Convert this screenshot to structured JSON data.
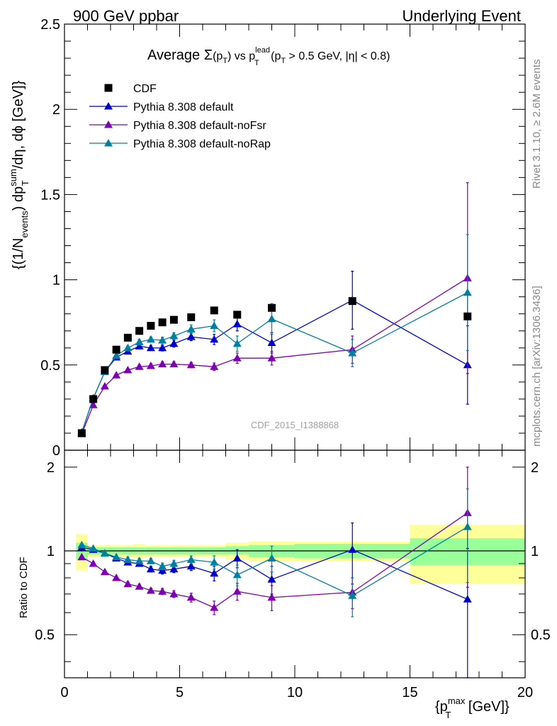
{
  "header": {
    "left": "900 GeV ppbar",
    "right": "Underlying Event"
  },
  "side_labels": {
    "rivet": "Rivet 3.1.10, ≥ 2.6M events",
    "mcplots": "mcplots.cern.ch [arXiv:1306.3436]"
  },
  "watermark": "CDF_2015_I1388868",
  "title": {
    "t1": "Average ",
    "sigma": "Σ",
    "t2": "(p",
    "sub_T": "T",
    "t3": ") vs p",
    "sup_lead": "lead",
    "t4": " (p",
    "t5": " > 0.5 GeV, |η| < 0.8)"
  },
  "ylabel_top": {
    "a": "{(1/N",
    "sub_events": "events",
    "b": ") dp",
    "sup_sum": "sum",
    "c": "/dη, dϕ [GeV]}"
  },
  "ylabel_bottom": "Ratio to CDF",
  "xlabel": {
    "a": "{p",
    "sup_max": "max",
    "b": " [GeV]}"
  },
  "colors": {
    "cdf": "#000000",
    "default": "#0000cc",
    "nofsr": "#7f00b2",
    "norap": "#0080a0",
    "band_inner": "#99ff99",
    "band_outer": "#ffff99"
  },
  "chart_data": [
    {
      "type": "scatter",
      "panel": "main",
      "xlim": [
        0,
        20
      ],
      "ylim": [
        0,
        2.5
      ],
      "yticks": [
        "0",
        "0.5",
        "1",
        "1.5",
        "2",
        "2.5"
      ],
      "xticks": [
        "0",
        "5",
        "10",
        "15",
        "20"
      ],
      "legend_position": "top-left",
      "series": [
        {
          "name": "CDF",
          "key": "cdf",
          "marker": "square",
          "x": [
            0.75,
            1.25,
            1.75,
            2.25,
            2.75,
            3.25,
            3.75,
            4.25,
            4.75,
            5.5,
            6.5,
            7.5,
            9.0,
            12.5,
            17.5
          ],
          "y": [
            0.1,
            0.3,
            0.47,
            0.59,
            0.66,
            0.7,
            0.73,
            0.75,
            0.765,
            0.78,
            0.82,
            0.795,
            0.835,
            0.875,
            0.785
          ],
          "err": [
            0,
            0,
            0,
            0,
            0,
            0,
            0,
            0,
            0,
            0,
            0,
            0,
            0,
            0,
            0
          ]
        },
        {
          "name": "Pythia 8.308 default",
          "key": "default",
          "marker": "triangle",
          "x": [
            0.75,
            1.25,
            1.75,
            2.25,
            2.75,
            3.25,
            3.75,
            4.25,
            4.75,
            5.5,
            6.5,
            7.5,
            9.0,
            12.5,
            17.5
          ],
          "y": [
            0.105,
            0.305,
            0.46,
            0.545,
            0.58,
            0.61,
            0.6,
            0.6,
            0.625,
            0.665,
            0.65,
            0.74,
            0.63,
            0.88,
            0.5
          ],
          "err": [
            0.005,
            0.008,
            0.01,
            0.012,
            0.012,
            0.015,
            0.015,
            0.018,
            0.02,
            0.022,
            0.03,
            0.04,
            0.06,
            0.17,
            0.23
          ]
        },
        {
          "name": "Pythia 8.308 default-noFsr",
          "key": "nofsr",
          "marker": "triangle",
          "x": [
            0.75,
            1.25,
            1.75,
            2.25,
            2.75,
            3.25,
            3.75,
            4.25,
            4.75,
            5.5,
            6.5,
            7.5,
            9.0,
            12.5,
            17.5
          ],
          "y": [
            0.095,
            0.265,
            0.375,
            0.44,
            0.47,
            0.49,
            0.495,
            0.505,
            0.505,
            0.5,
            0.49,
            0.54,
            0.54,
            0.59,
            1.01
          ],
          "err": [
            0.004,
            0.006,
            0.008,
            0.01,
            0.01,
            0.012,
            0.012,
            0.014,
            0.015,
            0.016,
            0.022,
            0.03,
            0.04,
            0.08,
            0.56
          ]
        },
        {
          "name": "Pythia 8.308 default-noRap",
          "key": "norap",
          "marker": "triangle",
          "x": [
            0.75,
            1.25,
            1.75,
            2.25,
            2.75,
            3.25,
            3.75,
            4.25,
            4.75,
            5.5,
            6.5,
            7.5,
            9.0,
            12.5,
            17.5
          ],
          "y": [
            0.105,
            0.305,
            0.46,
            0.555,
            0.6,
            0.635,
            0.65,
            0.645,
            0.67,
            0.71,
            0.73,
            0.625,
            0.77,
            0.57,
            0.925
          ],
          "err": [
            0.005,
            0.008,
            0.01,
            0.012,
            0.012,
            0.015,
            0.015,
            0.018,
            0.02,
            0.025,
            0.035,
            0.045,
            0.09,
            0.08,
            0.34
          ]
        }
      ]
    },
    {
      "type": "scatter",
      "panel": "ratio",
      "xlim": [
        0,
        20
      ],
      "ylim": [
        0.35,
        2.3
      ],
      "yticks": [
        "0.5",
        "1",
        "2"
      ],
      "reference_line": 1,
      "bands": {
        "edges": [
          0.5,
          1.0,
          1.5,
          2.0,
          2.5,
          3.0,
          3.5,
          4.0,
          4.5,
          5.0,
          6.0,
          7.0,
          8.0,
          10.0,
          15.0,
          20.0
        ],
        "inner_lo": [
          0.93,
          0.97,
          0.97,
          0.97,
          0.97,
          0.97,
          0.97,
          0.97,
          0.97,
          0.97,
          0.97,
          0.97,
          0.95,
          0.94,
          0.89
        ],
        "inner_hi": [
          1.07,
          1.03,
          1.03,
          1.03,
          1.03,
          1.03,
          1.03,
          1.03,
          1.03,
          1.03,
          1.03,
          1.04,
          1.05,
          1.06,
          1.11
        ],
        "outer_lo": [
          0.85,
          0.95,
          0.95,
          0.95,
          0.95,
          0.94,
          0.95,
          0.95,
          0.95,
          0.95,
          0.95,
          0.93,
          0.92,
          0.92,
          0.76
        ],
        "outer_hi": [
          1.15,
          1.05,
          1.05,
          1.05,
          1.05,
          1.06,
          1.05,
          1.05,
          1.05,
          1.05,
          1.05,
          1.07,
          1.08,
          1.08,
          1.24
        ]
      },
      "series": [
        {
          "name": "Pythia 8.308 default",
          "key": "default",
          "x": [
            0.75,
            1.25,
            1.75,
            2.25,
            2.75,
            3.25,
            3.75,
            4.25,
            4.75,
            5.5,
            6.5,
            7.5,
            9.0,
            12.5,
            17.5
          ],
          "y": [
            1.03,
            1.01,
            0.98,
            0.94,
            0.91,
            0.9,
            0.86,
            0.85,
            0.86,
            0.88,
            0.83,
            0.94,
            0.79,
            1.01,
            0.67
          ],
          "err": [
            0.01,
            0.01,
            0.012,
            0.015,
            0.02,
            0.02,
            0.02,
            0.025,
            0.025,
            0.03,
            0.05,
            0.07,
            0.09,
            0.25,
            0.35
          ]
        },
        {
          "name": "Pythia 8.308 default-noFsr",
          "key": "nofsr",
          "x": [
            0.75,
            1.25,
            1.75,
            2.25,
            2.75,
            3.25,
            3.75,
            4.25,
            4.75,
            5.5,
            6.5,
            7.5,
            9.0,
            12.5,
            17.5
          ],
          "y": [
            0.95,
            0.9,
            0.84,
            0.8,
            0.76,
            0.745,
            0.72,
            0.715,
            0.7,
            0.68,
            0.625,
            0.715,
            0.68,
            0.71,
            1.37
          ],
          "err": [
            0.01,
            0.01,
            0.012,
            0.012,
            0.015,
            0.015,
            0.015,
            0.018,
            0.02,
            0.025,
            0.035,
            0.05,
            0.07,
            0.09,
            0.63
          ]
        },
        {
          "name": "Pythia 8.308 default-noRap",
          "key": "norap",
          "x": [
            0.75,
            1.25,
            1.75,
            2.25,
            2.75,
            3.25,
            3.75,
            4.25,
            4.75,
            5.5,
            6.5,
            7.5,
            9.0,
            12.5,
            17.5
          ],
          "y": [
            1.05,
            1.02,
            0.98,
            0.95,
            0.93,
            0.92,
            0.92,
            0.88,
            0.9,
            0.93,
            0.91,
            0.82,
            0.94,
            0.69,
            1.22
          ],
          "err": [
            0.01,
            0.01,
            0.012,
            0.015,
            0.02,
            0.02,
            0.02,
            0.025,
            0.025,
            0.03,
            0.05,
            0.07,
            0.1,
            0.11,
            0.45
          ]
        }
      ]
    }
  ]
}
